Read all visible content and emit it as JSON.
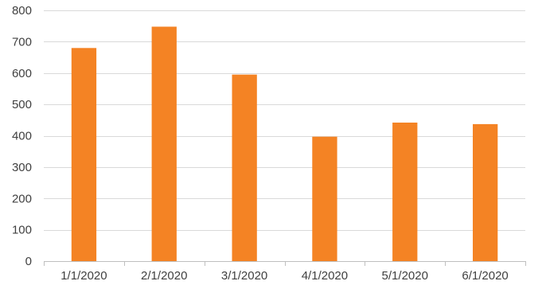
{
  "chart_data": {
    "type": "bar",
    "title": "",
    "xlabel": "",
    "ylabel": "",
    "categories": [
      "1/1/2020",
      "2/1/2020",
      "3/1/2020",
      "4/1/2020",
      "5/1/2020",
      "6/1/2020"
    ],
    "values": [
      680,
      748,
      595,
      397,
      442,
      437
    ],
    "ylim": [
      0,
      800
    ],
    "yticks": [
      0,
      100,
      200,
      300,
      400,
      500,
      600,
      700,
      800
    ],
    "ytick_labels": [
      "0",
      "100",
      "200",
      "300",
      "400",
      "500",
      "600",
      "700",
      "800"
    ],
    "grid": true,
    "legend": "none",
    "bar_color": "#F48324",
    "grid_color": "#D9D9D9",
    "axis_color": "#BFBFBF",
    "text_color": "#404040"
  }
}
